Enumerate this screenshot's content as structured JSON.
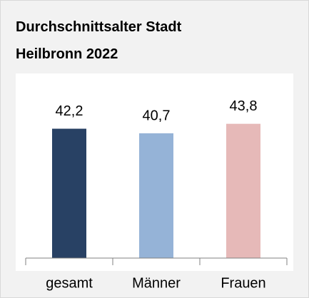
{
  "chart_data": {
    "type": "bar",
    "title": "Durchschnittsalter Stadt Heilbronn 2022",
    "categories": [
      "gesamt",
      "Männer",
      "Frauen"
    ],
    "values": [
      42.2,
      40.7,
      43.8
    ],
    "value_labels": [
      "42,2",
      "40,7",
      "43,8"
    ],
    "colors": [
      "#284164",
      "#95b3d7",
      "#e6b9b8"
    ],
    "ylim": [
      0,
      60
    ]
  }
}
